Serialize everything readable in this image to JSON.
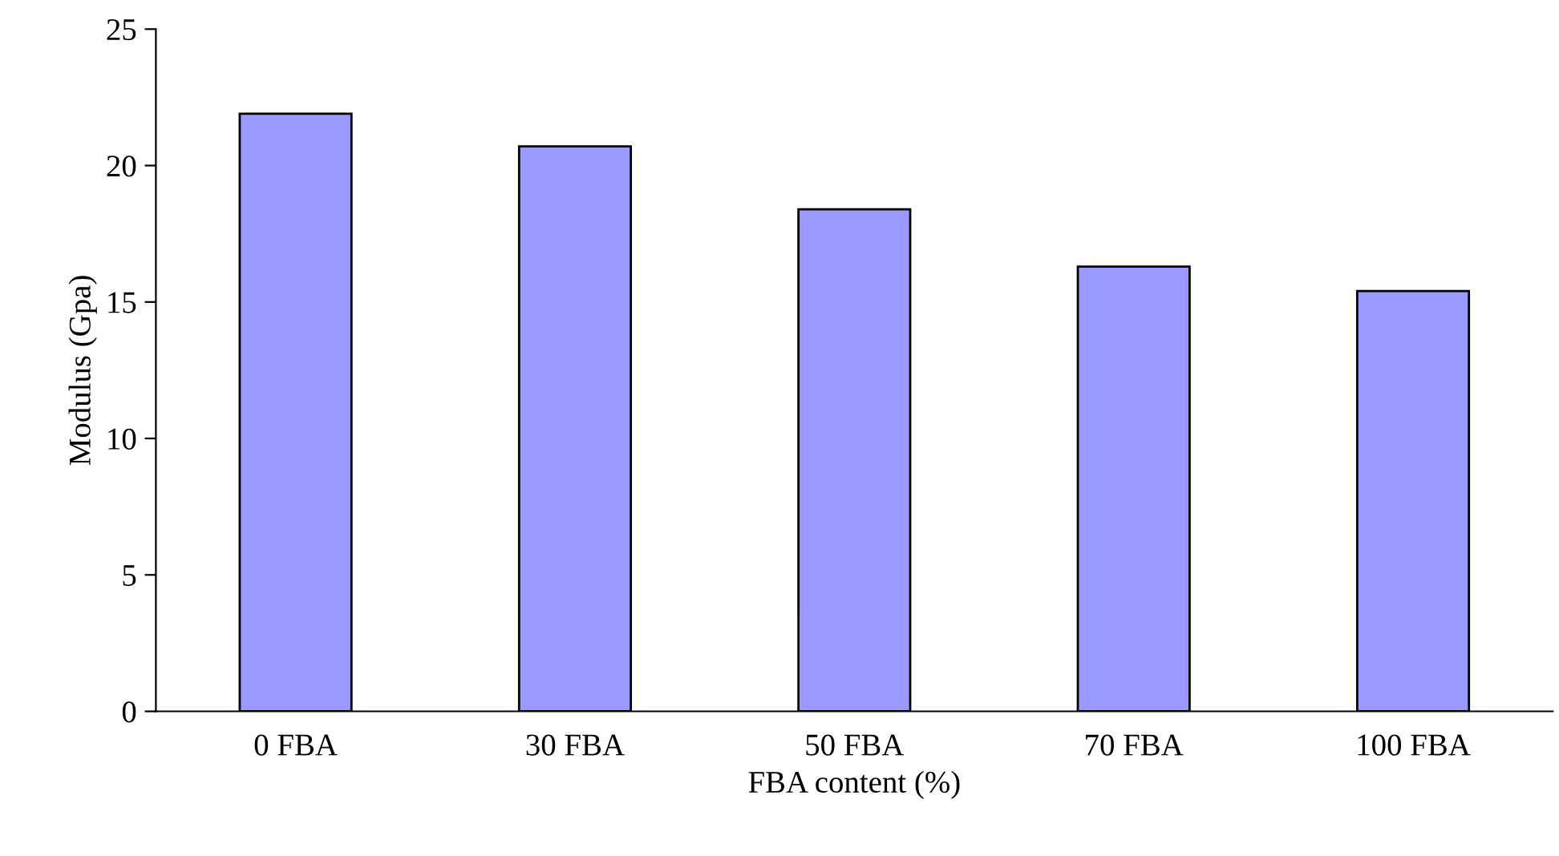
{
  "chart_data": {
    "type": "bar",
    "xlabel": "FBA content (%)",
    "ylabel": "Modulus (Gpa)",
    "categories": [
      "0 FBA",
      "30 FBA",
      "50 FBA",
      "70 FBA",
      "100 FBA"
    ],
    "values": [
      21.9,
      20.7,
      18.4,
      16.3,
      15.4
    ],
    "color": "#9999ff",
    "ylim": [
      0,
      25
    ],
    "yticks": [
      0,
      5,
      10,
      15,
      20,
      25
    ],
    "grid": false,
    "legend": false
  }
}
